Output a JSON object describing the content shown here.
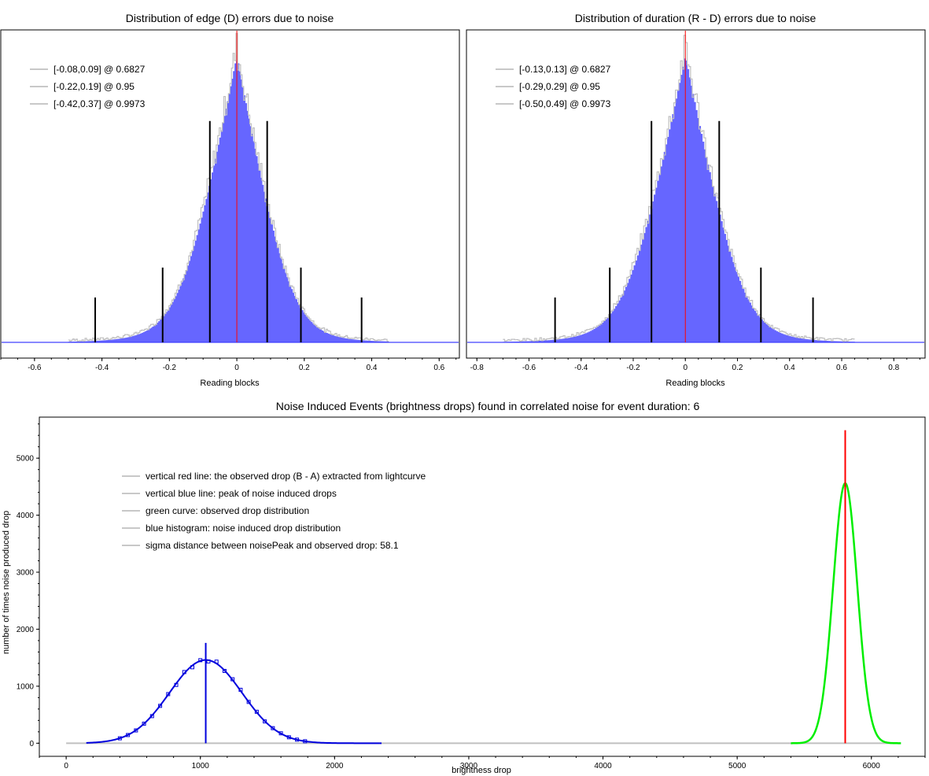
{
  "charts": [
    {
      "id": "edge",
      "type": "bar",
      "title": "Distribution of edge (D) errors due to noise",
      "xlabel": "Reading blocks",
      "xlim": [
        -0.7,
        0.66
      ],
      "xticks": [
        -0.6,
        -0.4,
        -0.2,
        0,
        0.2,
        0.4,
        0.6
      ],
      "xtick_labels": [
        "-0.6",
        "-0.4",
        "-0.2",
        "0",
        "0.2",
        "0.4",
        "0.6"
      ],
      "ylim": [
        0,
        1.0
      ],
      "hist": {
        "mu": 0.0,
        "sigma_left": 0.1,
        "sigma_right": 0.095,
        "peak": 0.96,
        "range": [
          -0.5,
          0.45
        ]
      },
      "hist_color": "#6666ff",
      "outline_color": "#c0c0c0",
      "baseline_color": "#4040ff",
      "center_line": {
        "x": 0,
        "color": "#ff0000"
      },
      "ci_lines": [
        {
          "x": -0.08,
          "height": 0.74
        },
        {
          "x": 0.09,
          "height": 0.74
        },
        {
          "x": -0.22,
          "height": 0.25
        },
        {
          "x": 0.19,
          "height": 0.25
        },
        {
          "x": -0.42,
          "height": 0.15
        },
        {
          "x": 0.37,
          "height": 0.15
        }
      ],
      "legend": [
        "[-0.08,0.09] @ 0.6827",
        "[-0.22,0.19] @ 0.95",
        "[-0.42,0.37] @ 0.9973"
      ]
    },
    {
      "id": "duration",
      "type": "bar",
      "title": "Distribution of duration (R - D) errors due to noise",
      "xlabel": "Reading blocks",
      "xlim": [
        -0.84,
        0.92
      ],
      "xticks": [
        -0.8,
        -0.6,
        -0.4,
        -0.2,
        0,
        0.2,
        0.4,
        0.6,
        0.8
      ],
      "xtick_labels": [
        "-0.8",
        "-0.6",
        "-0.4",
        "-0.2",
        "0",
        "0.2",
        "0.4",
        "0.6",
        "0.8"
      ],
      "ylim": [
        0,
        1.0
      ],
      "hist": {
        "mu": 0.0,
        "sigma_left": 0.135,
        "sigma_right": 0.13,
        "peak": 0.96,
        "range": [
          -0.7,
          0.65
        ]
      },
      "hist_color": "#6666ff",
      "outline_color": "#c0c0c0",
      "baseline_color": "#4040ff",
      "center_line": {
        "x": 0,
        "color": "#ff0000"
      },
      "ci_lines": [
        {
          "x": -0.13,
          "height": 0.74
        },
        {
          "x": 0.13,
          "height": 0.74
        },
        {
          "x": -0.29,
          "height": 0.25
        },
        {
          "x": 0.29,
          "height": 0.25
        },
        {
          "x": -0.5,
          "height": 0.15
        },
        {
          "x": 0.49,
          "height": 0.15
        }
      ],
      "legend": [
        "[-0.13,0.13] @ 0.6827",
        "[-0.29,0.29] @ 0.95",
        "[-0.50,0.49] @ 0.9973"
      ]
    },
    {
      "id": "drops",
      "type": "line",
      "title": "Noise Induced Events (brightness drops) found in correlated noise for event duration: 6",
      "xlabel": "brightness drop",
      "ylabel": "number of times noise produced drop",
      "xlim": [
        -200,
        6400
      ],
      "ylim": [
        -230,
        5720
      ],
      "xticks": [
        0,
        1000,
        2000,
        3000,
        4000,
        5000,
        6000
      ],
      "xtick_labels": [
        "0",
        "1000",
        "2000",
        "3000",
        "4000",
        "5000",
        "6000"
      ],
      "yticks": [
        0,
        1000,
        2000,
        3000,
        4000,
        5000
      ],
      "ytick_labels": [
        "0",
        "1000",
        "2000",
        "3000",
        "4000",
        "5000"
      ],
      "noise_curve": {
        "mu": 1040,
        "sigma": 270,
        "peak": 1460,
        "range": [
          150,
          2350
        ],
        "color": "#0000dd"
      },
      "observed_curve": {
        "mu": 5805,
        "sigma": 90,
        "peak": 4560,
        "range": [
          5400,
          6220
        ],
        "color": "#00ee00"
      },
      "noise_peak_line": {
        "x": 1040,
        "top": 1760,
        "color": "#0000dd"
      },
      "observed_line": {
        "x": 5805,
        "top": 5490,
        "color": "#ff0000"
      },
      "baseline_color": "#c0c0c0",
      "legend": [
        "vertical red line: the observed drop (B - A) extracted from lightcurve",
        "vertical blue line: peak of noise induced drops",
        "green curve: observed drop distribution",
        "blue histogram: noise induced drop distribution",
        "sigma distance between noisePeak and observed drop: 58.1"
      ]
    }
  ]
}
